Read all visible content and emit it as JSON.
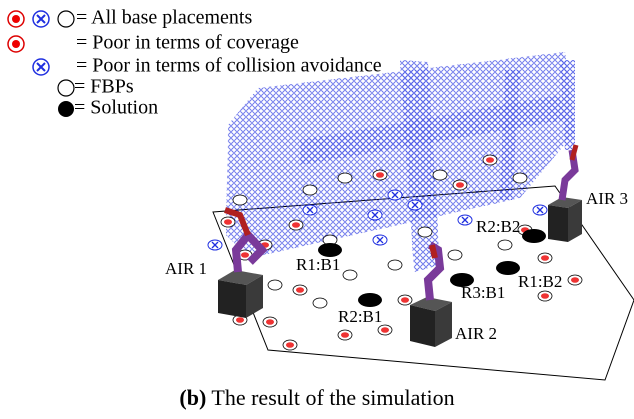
{
  "legend": [
    {
      "label": "= All base placements"
    },
    {
      "label": "= Poor in terms of coverage"
    },
    {
      "label": "= Poor in terms of collision avoidance"
    },
    {
      "label": "= FBPs"
    },
    {
      "label": "= Solution"
    }
  ],
  "labels": [
    "AIR 1",
    "AIR 2",
    "AIR 3",
    "R1:B1",
    "R2:B1",
    "R3:B1",
    "R1:B2",
    "R2:B2"
  ],
  "caption": {
    "tag": "(b)",
    "text": "The result of the simulation"
  }
}
